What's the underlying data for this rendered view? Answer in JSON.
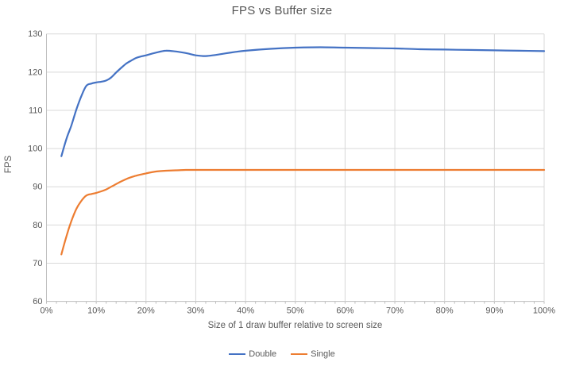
{
  "chart_data": {
    "type": "line",
    "title": "FPS vs Buffer size",
    "xlabel": "Size of 1 draw buffer relative to screen size",
    "ylabel": "FPS",
    "xlim": [
      0,
      100
    ],
    "ylim": [
      60,
      130
    ],
    "x_tick_step": 10,
    "x_minor_tick_step": 2,
    "x_ticks": [
      "0%",
      "10%",
      "20%",
      "30%",
      "40%",
      "50%",
      "60%",
      "70%",
      "80%",
      "90%",
      "100%"
    ],
    "y_ticks": [
      60,
      70,
      80,
      90,
      100,
      110,
      120,
      130
    ],
    "grid": true,
    "legend_position": "bottom",
    "colors": {
      "grid": "#d9d9d9",
      "axis": "#bfbfbf",
      "text": "#595959",
      "title": "#555555",
      "background": "#ffffff"
    },
    "series": [
      {
        "name": "Double",
        "color": "#4472c4",
        "points": [
          [
            3,
            98
          ],
          [
            4,
            102.5
          ],
          [
            5,
            106
          ],
          [
            6,
            110.2
          ],
          [
            7,
            113.7
          ],
          [
            8,
            116.4
          ],
          [
            9,
            117
          ],
          [
            10,
            117.3
          ],
          [
            11,
            117.5
          ],
          [
            12,
            117.8
          ],
          [
            13,
            118.6
          ],
          [
            14,
            119.9
          ],
          [
            15,
            121.1
          ],
          [
            16,
            122.2
          ],
          [
            17,
            123
          ],
          [
            18,
            123.7
          ],
          [
            19,
            124.1
          ],
          [
            20,
            124.4
          ],
          [
            22,
            125.1
          ],
          [
            24,
            125.6
          ],
          [
            26,
            125.4
          ],
          [
            28,
            125
          ],
          [
            30,
            124.4
          ],
          [
            32,
            124.2
          ],
          [
            34,
            124.5
          ],
          [
            36,
            124.9
          ],
          [
            38,
            125.3
          ],
          [
            40,
            125.6
          ],
          [
            45,
            126.1
          ],
          [
            50,
            126.4
          ],
          [
            55,
            126.5
          ],
          [
            60,
            126.4
          ],
          [
            65,
            126.3
          ],
          [
            70,
            126.2
          ],
          [
            75,
            126
          ],
          [
            80,
            125.9
          ],
          [
            85,
            125.8
          ],
          [
            90,
            125.7
          ],
          [
            95,
            125.6
          ],
          [
            100,
            125.5
          ]
        ]
      },
      {
        "name": "Single",
        "color": "#ed7d31",
        "points": [
          [
            3,
            72.3
          ],
          [
            4,
            77
          ],
          [
            5,
            81
          ],
          [
            6,
            84.2
          ],
          [
            7,
            86.3
          ],
          [
            8,
            87.7
          ],
          [
            9,
            88.1
          ],
          [
            10,
            88.4
          ],
          [
            11,
            88.8
          ],
          [
            12,
            89.3
          ],
          [
            13,
            90
          ],
          [
            14,
            90.7
          ],
          [
            15,
            91.4
          ],
          [
            16,
            92
          ],
          [
            17,
            92.5
          ],
          [
            18,
            92.9
          ],
          [
            19,
            93.2
          ],
          [
            20,
            93.5
          ],
          [
            22,
            94
          ],
          [
            24,
            94.2
          ],
          [
            26,
            94.3
          ],
          [
            28,
            94.4
          ],
          [
            30,
            94.4
          ],
          [
            35,
            94.4
          ],
          [
            40,
            94.4
          ],
          [
            45,
            94.4
          ],
          [
            50,
            94.4
          ],
          [
            55,
            94.4
          ],
          [
            60,
            94.4
          ],
          [
            65,
            94.4
          ],
          [
            70,
            94.4
          ],
          [
            75,
            94.4
          ],
          [
            80,
            94.4
          ],
          [
            85,
            94.4
          ],
          [
            90,
            94.4
          ],
          [
            95,
            94.4
          ],
          [
            100,
            94.4
          ]
        ]
      }
    ]
  }
}
